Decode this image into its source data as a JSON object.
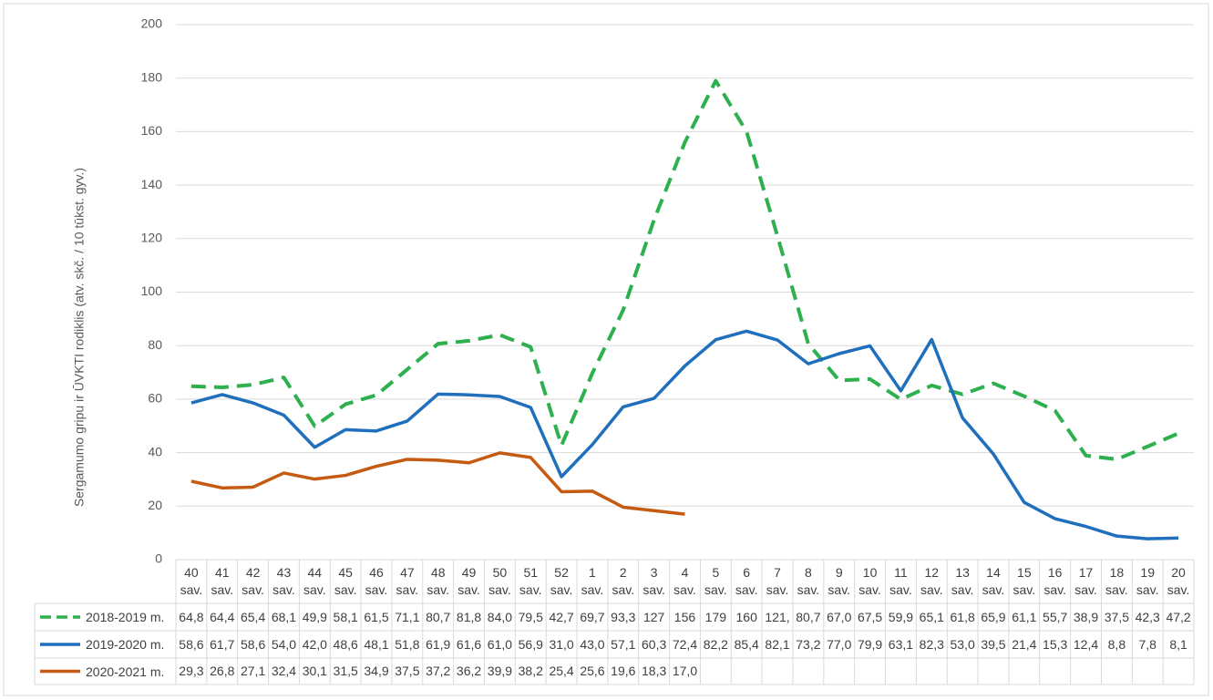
{
  "chart_data": {
    "type": "line",
    "y_label": "Sergamumo gripu ir ŪVKTI rodiklis (atv. skč. / 10 tūkst. gyv.)",
    "categories": [
      "40 sav.",
      "41 sav.",
      "42 sav.",
      "43 sav.",
      "44 sav.",
      "45 sav.",
      "46 sav.",
      "47 sav.",
      "48 sav.",
      "49 sav.",
      "50 sav.",
      "51 sav.",
      "52 sav.",
      "1 sav.",
      "2 sav.",
      "3 sav.",
      "4 sav.",
      "5 sav.",
      "6 sav.",
      "7 sav.",
      "8 sav.",
      "9 sav.",
      "10 sav.",
      "11 sav.",
      "12 sav.",
      "13 sav.",
      "14 sav.",
      "15 sav.",
      "16 sav.",
      "17 sav.",
      "18 sav.",
      "19 sav.",
      "20 sav."
    ],
    "ylim": [
      0,
      200
    ],
    "yticks": [
      0,
      20,
      40,
      60,
      80,
      100,
      120,
      140,
      160,
      180,
      200
    ],
    "grid": true,
    "series": [
      {
        "name": "2018-2019 m.",
        "color": "#2eb04f",
        "dashed": true,
        "values": [
          64.8,
          64.4,
          65.4,
          68.1,
          49.9,
          58.1,
          61.5,
          71.1,
          80.7,
          81.8,
          84.0,
          79.5,
          42.7,
          69.7,
          93.3,
          127,
          156,
          179,
          160,
          121,
          80.7,
          67.0,
          67.5,
          59.9,
          65.1,
          61.8,
          65.9,
          61.1,
          55.7,
          38.9,
          37.5,
          42.3,
          47.2
        ],
        "value_labels": [
          "64,8",
          "64,4",
          "65,4",
          "68,1",
          "49,9",
          "58,1",
          "61,5",
          "71,1",
          "80,7",
          "81,8",
          "84,0",
          "79,5",
          "42,7",
          "69,7",
          "93,3",
          "127",
          "156",
          "179",
          "160",
          "121,",
          "80,7",
          "67,0",
          "67,5",
          "59,9",
          "65,1",
          "61,8",
          "65,9",
          "61,1",
          "55,7",
          "38,9",
          "37,5",
          "42,3",
          "47,2"
        ]
      },
      {
        "name": "2019-2020 m.",
        "color": "#1f6fbd",
        "dashed": false,
        "values": [
          58.6,
          61.7,
          58.6,
          54.0,
          42.0,
          48.6,
          48.1,
          51.8,
          61.9,
          61.6,
          61.0,
          56.9,
          31.0,
          43.0,
          57.1,
          60.3,
          72.4,
          82.2,
          85.4,
          82.1,
          73.2,
          77.0,
          79.9,
          63.1,
          82.3,
          53.0,
          39.5,
          21.4,
          15.3,
          12.4,
          8.8,
          7.8,
          8.1
        ],
        "value_labels": [
          "58,6",
          "61,7",
          "58,6",
          "54,0",
          "42,0",
          "48,6",
          "48,1",
          "51,8",
          "61,9",
          "61,6",
          "61,0",
          "56,9",
          "31,0",
          "43,0",
          "57,1",
          "60,3",
          "72,4",
          "82,2",
          "85,4",
          "82,1",
          "73,2",
          "77,0",
          "79,9",
          "63,1",
          "82,3",
          "53,0",
          "39,5",
          "21,4",
          "15,3",
          "12,4",
          "8,8",
          "7,8",
          "8,1"
        ]
      },
      {
        "name": "2020-2021 m.",
        "color": "#c55a11",
        "dashed": false,
        "values": [
          29.3,
          26.8,
          27.1,
          32.4,
          30.1,
          31.5,
          34.9,
          37.5,
          37.2,
          36.2,
          39.9,
          38.2,
          25.4,
          25.6,
          19.6,
          18.3,
          17.0,
          null,
          null,
          null,
          null,
          null,
          null,
          null,
          null,
          null,
          null,
          null,
          null,
          null,
          null,
          null,
          null
        ],
        "value_labels": [
          "29,3",
          "26,8",
          "27,1",
          "32,4",
          "30,1",
          "31,5",
          "34,9",
          "37,5",
          "37,2",
          "36,2",
          "39,9",
          "38,2",
          "25,4",
          "25,6",
          "19,6",
          "18,3",
          "17,0",
          null,
          null,
          null,
          null,
          null,
          null,
          null,
          null,
          null,
          null,
          null,
          null,
          null,
          null,
          null,
          null
        ]
      }
    ]
  }
}
